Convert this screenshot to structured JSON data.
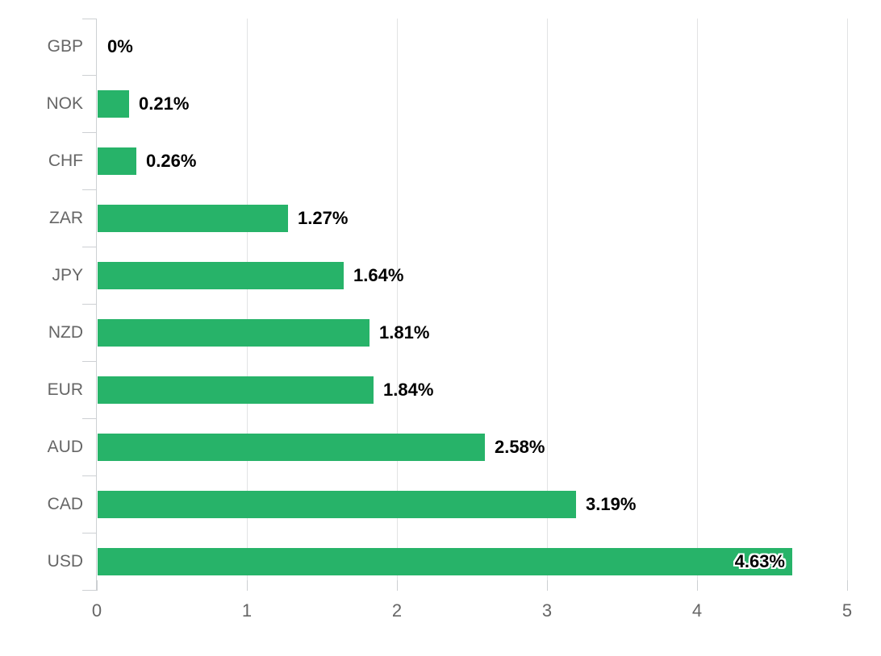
{
  "chart_data": {
    "type": "bar",
    "orientation": "horizontal",
    "title": "",
    "xlabel": "",
    "ylabel": "",
    "categories": [
      "GBP",
      "NOK",
      "CHF",
      "ZAR",
      "JPY",
      "NZD",
      "EUR",
      "AUD",
      "CAD",
      "USD"
    ],
    "values": [
      0,
      0.21,
      0.26,
      1.27,
      1.64,
      1.81,
      1.84,
      2.58,
      3.19,
      4.63
    ],
    "value_labels": [
      "0%",
      "0.21%",
      "0.26%",
      "1.27%",
      "1.64%",
      "1.81%",
      "1.84%",
      "2.58%",
      "3.19%",
      "4.63%"
    ],
    "xlim": [
      0,
      5
    ],
    "x_ticks": [
      0,
      1,
      2,
      3,
      4,
      5
    ],
    "grid": true,
    "legend": false
  },
  "style": {
    "bar_color": "#27b369",
    "grid_color": "#e2e3e4",
    "axis_color": "#cdd0d3",
    "tick_color": "#cdd0d3",
    "category_label_color": "#666666",
    "x_label_color": "#666666",
    "value_label_color": "#000000",
    "background_color": "#ffffff"
  }
}
